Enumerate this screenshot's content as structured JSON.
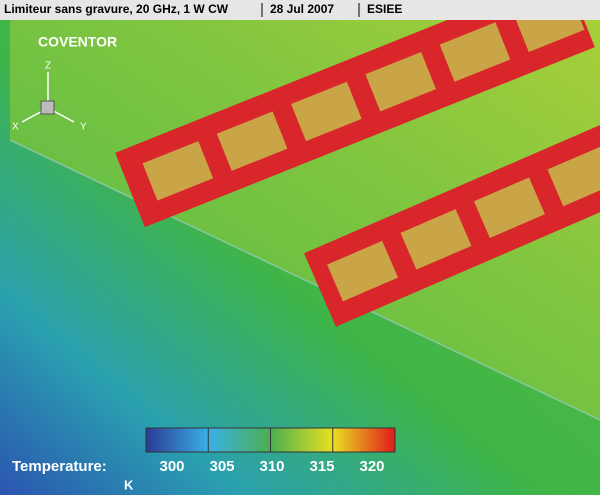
{
  "header": {
    "title": "Limiteur sans gravure, 20 GHz, 1 W CW",
    "date": "28 Jul 2007",
    "org": "ESIEE"
  },
  "logo": "COVENTOR",
  "triad": {
    "z": "Z",
    "x": "X",
    "y": "Y"
  },
  "colorbar": {
    "label": "Temperature:",
    "unit": "K",
    "lim": [
      300,
      320
    ],
    "ticks": [
      300,
      305,
      310,
      315,
      320
    ]
  }
}
